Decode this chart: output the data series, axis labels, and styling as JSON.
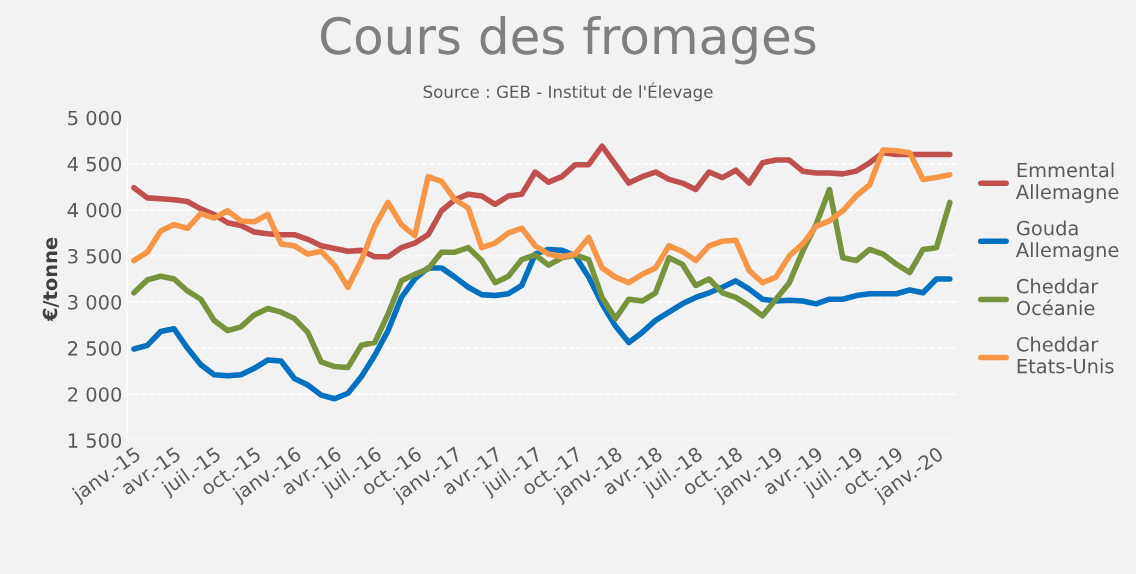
{
  "chart_data": {
    "type": "line",
    "title": "Cours des fromages",
    "subtitle": "Source : GEB - Institut de l'Élevage",
    "ylabel": "€/tonne",
    "categories": [
      "janv.-15",
      null,
      null,
      "avr.-15",
      null,
      null,
      "juil.-15",
      null,
      null,
      "oct.-15",
      null,
      null,
      "janv.-16",
      null,
      null,
      "avr.-16",
      null,
      null,
      "juil.-16",
      null,
      null,
      "oct.-16",
      null,
      null,
      "janv.-17",
      null,
      null,
      "avr.-17",
      null,
      null,
      "juil.-17",
      null,
      null,
      "oct.-17",
      null,
      null,
      "janv.-18",
      null,
      null,
      "avr.-18",
      null,
      null,
      "juil.-18",
      null,
      null,
      "oct.-18",
      null,
      null,
      "janv.-19",
      null,
      null,
      "avr.-19",
      null,
      null,
      "juil.-19",
      null,
      null,
      "oct.-19",
      null,
      null,
      "janv.-20",
      null
    ],
    "ylim": [
      1500,
      5000
    ],
    "yticks": [
      {
        "value": 1500,
        "label": "1 500"
      },
      {
        "value": 2000,
        "label": "2 000"
      },
      {
        "value": 2500,
        "label": "2 500"
      },
      {
        "value": 3000,
        "label": "3 000"
      },
      {
        "value": 3500,
        "label": "3 500"
      },
      {
        "value": 4000,
        "label": "4 000"
      },
      {
        "value": 4500,
        "label": "4 500"
      },
      {
        "value": 5000,
        "label": "5 000"
      }
    ],
    "grid": "y",
    "legend": "right",
    "marker": "none",
    "line_style": "solid",
    "series": [
      {
        "name": "Emmental Allemagne",
        "color": "#c0504d",
        "values": [
          4240,
          4130,
          4120,
          4110,
          4090,
          4010,
          3950,
          3860,
          3830,
          3760,
          3740,
          3730,
          3730,
          3680,
          3610,
          3580,
          3550,
          3560,
          3490,
          3490,
          3590,
          3640,
          3730,
          3990,
          4110,
          4170,
          4150,
          4060,
          4150,
          4170,
          4410,
          4300,
          4360,
          4490,
          4490,
          4690,
          4490,
          4290,
          4360,
          4410,
          4330,
          4290,
          4220,
          4410,
          4350,
          4430,
          4290,
          4510,
          4540,
          4540,
          4420,
          4400,
          4400,
          4390,
          4420,
          4510,
          4620,
          4600,
          4600,
          4600,
          4600,
          4600
        ]
      },
      {
        "name": "Gouda Allemagne",
        "color": "#0070c0",
        "values": [
          2490,
          2530,
          2680,
          2710,
          2500,
          2320,
          2210,
          2200,
          2210,
          2280,
          2370,
          2360,
          2170,
          2100,
          1990,
          1950,
          2010,
          2190,
          2420,
          2690,
          3050,
          3250,
          3370,
          3370,
          3270,
          3160,
          3080,
          3070,
          3090,
          3180,
          3520,
          3570,
          3560,
          3500,
          3270,
          2980,
          2740,
          2560,
          2670,
          2800,
          2890,
          2980,
          3050,
          3100,
          3160,
          3230,
          3140,
          3030,
          3010,
          3020,
          3010,
          2980,
          3030,
          3030,
          3070,
          3090,
          3090,
          3090,
          3130,
          3100,
          3250,
          3250
        ]
      },
      {
        "name": "Cheddar Océanie",
        "color": "#77933c",
        "values": [
          3100,
          3240,
          3280,
          3250,
          3120,
          3030,
          2800,
          2690,
          2730,
          2860,
          2930,
          2890,
          2820,
          2670,
          2350,
          2300,
          2290,
          2530,
          2560,
          2870,
          3230,
          3300,
          3360,
          3540,
          3540,
          3590,
          3450,
          3210,
          3280,
          3460,
          3510,
          3400,
          3480,
          3510,
          3460,
          3050,
          2820,
          3030,
          3010,
          3100,
          3480,
          3410,
          3180,
          3250,
          3100,
          3050,
          2960,
          2850,
          3030,
          3210,
          3550,
          3840,
          4220,
          3480,
          3450,
          3570,
          3520,
          3410,
          3320,
          3570,
          3590,
          4080
        ]
      },
      {
        "name": "Cheddar Etats-Unis",
        "color": "#f79646",
        "values": [
          3450,
          3540,
          3770,
          3840,
          3800,
          3960,
          3910,
          3990,
          3880,
          3870,
          3950,
          3630,
          3610,
          3520,
          3550,
          3400,
          3160,
          3450,
          3820,
          4080,
          3840,
          3720,
          4360,
          4310,
          4110,
          4020,
          3590,
          3640,
          3750,
          3800,
          3610,
          3520,
          3490,
          3520,
          3700,
          3370,
          3270,
          3210,
          3300,
          3370,
          3610,
          3550,
          3450,
          3610,
          3660,
          3670,
          3340,
          3210,
          3270,
          3500,
          3630,
          3820,
          3880,
          3990,
          4150,
          4270,
          4650,
          4640,
          4620,
          4330,
          4350,
          4380
        ]
      }
    ]
  }
}
